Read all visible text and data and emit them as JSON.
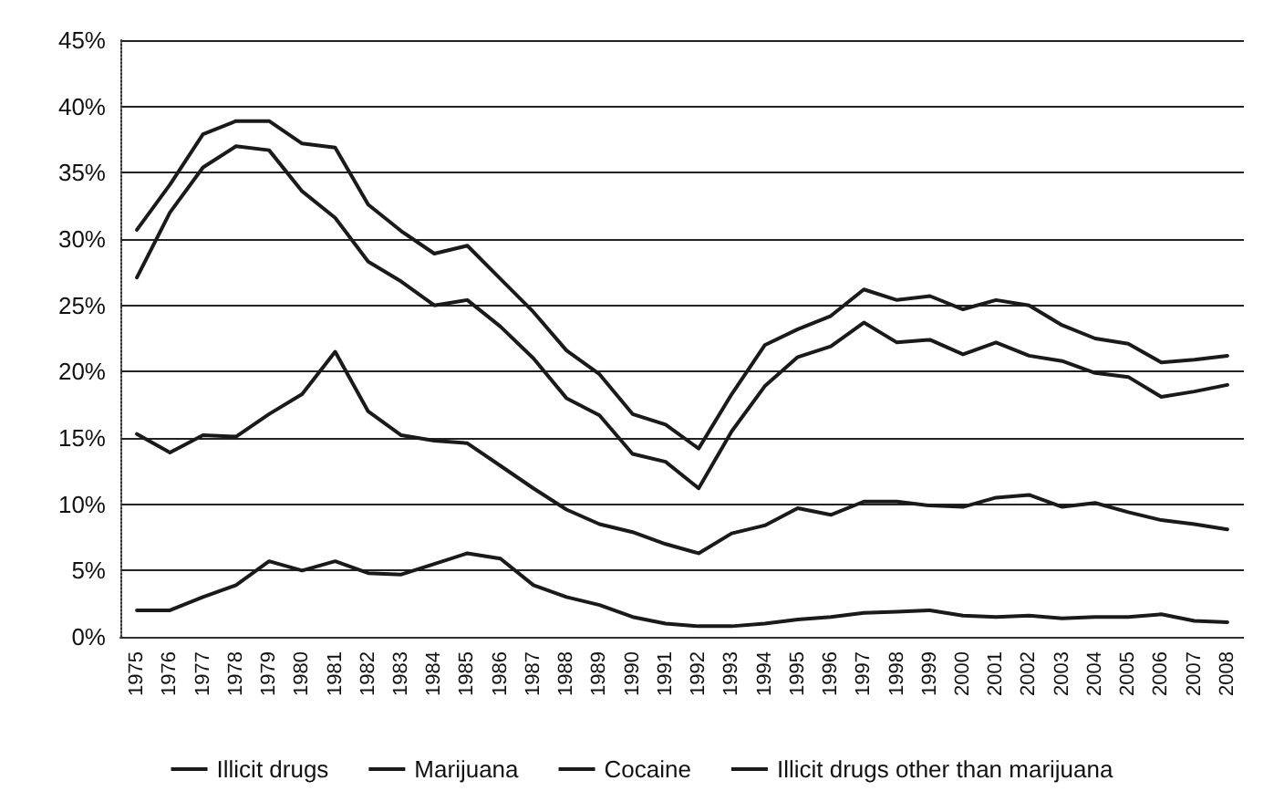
{
  "chart_data": {
    "type": "line",
    "categories": [
      "1975",
      "1976",
      "1977",
      "1978",
      "1979",
      "1980",
      "1981",
      "1982",
      "1983",
      "1984",
      "1985",
      "1986",
      "1987",
      "1988",
      "1989",
      "1990",
      "1991",
      "1992",
      "1993",
      "1994",
      "1995",
      "1996",
      "1997",
      "1998",
      "1999",
      "2000",
      "2001",
      "2002",
      "2003",
      "2004",
      "2005",
      "2006",
      "2007",
      "2008"
    ],
    "series": [
      {
        "name": "Illicit drugs",
        "color": "#1a1a1a",
        "values": [
          30.7,
          34.1,
          37.9,
          38.9,
          38.9,
          37.2,
          36.9,
          32.6,
          30.6,
          28.9,
          29.5,
          27.0,
          24.5,
          21.6,
          19.8,
          16.8,
          16.0,
          14.2,
          18.3,
          22.0,
          23.2,
          24.2,
          26.2,
          25.4,
          25.7,
          24.7,
          25.4,
          25.0,
          23.5,
          22.5,
          22.1,
          20.7,
          20.9,
          21.2
        ]
      },
      {
        "name": "Marijuana",
        "color": "#1a1a1a",
        "values": [
          27.1,
          32.0,
          35.4,
          37.0,
          36.7,
          33.6,
          31.6,
          28.3,
          26.8,
          25.0,
          25.4,
          23.4,
          21.0,
          18.0,
          16.7,
          13.8,
          13.2,
          11.2,
          15.5,
          18.9,
          21.1,
          21.9,
          23.7,
          22.2,
          22.4,
          21.3,
          22.2,
          21.2,
          20.8,
          19.9,
          19.6,
          18.1,
          18.5,
          19.0
        ]
      },
      {
        "name": "Cocaine",
        "color": "#1a1a1a",
        "values": [
          2.0,
          2.0,
          3.0,
          3.9,
          5.7,
          5.0,
          5.7,
          4.8,
          4.7,
          5.5,
          6.3,
          5.9,
          3.9,
          3.0,
          2.4,
          1.5,
          1.0,
          0.8,
          0.8,
          1.0,
          1.3,
          1.5,
          1.8,
          1.9,
          2.0,
          1.6,
          1.5,
          1.6,
          1.4,
          1.5,
          1.5,
          1.7,
          1.2,
          1.1
        ]
      },
      {
        "name": "Illicit drugs other than marijuana",
        "color": "#1a1a1a",
        "values": [
          15.3,
          13.9,
          15.2,
          15.1,
          16.8,
          18.3,
          21.5,
          17.0,
          15.2,
          14.8,
          14.6,
          12.9,
          11.2,
          9.6,
          8.5,
          7.9,
          7.0,
          6.3,
          7.8,
          8.4,
          9.7,
          9.2,
          10.2,
          10.2,
          9.9,
          9.8,
          10.5,
          10.7,
          9.8,
          10.1,
          9.4,
          8.8,
          8.5,
          8.1
        ]
      }
    ],
    "ylim": [
      0,
      45
    ],
    "yticks": [
      {
        "value": 0,
        "label": "0%"
      },
      {
        "value": 5,
        "label": "5%"
      },
      {
        "value": 10,
        "label": "10%"
      },
      {
        "value": 15,
        "label": "15%"
      },
      {
        "value": 20,
        "label": "20%"
      },
      {
        "value": 25,
        "label": "25%"
      },
      {
        "value": 30,
        "label": "30%"
      },
      {
        "value": 35,
        "label": "35%"
      },
      {
        "value": 40,
        "label": "40%"
      },
      {
        "value": 45,
        "label": "45%"
      }
    ],
    "grid": "y",
    "legend": "bottom",
    "marker": "none",
    "line_style": "solid"
  }
}
